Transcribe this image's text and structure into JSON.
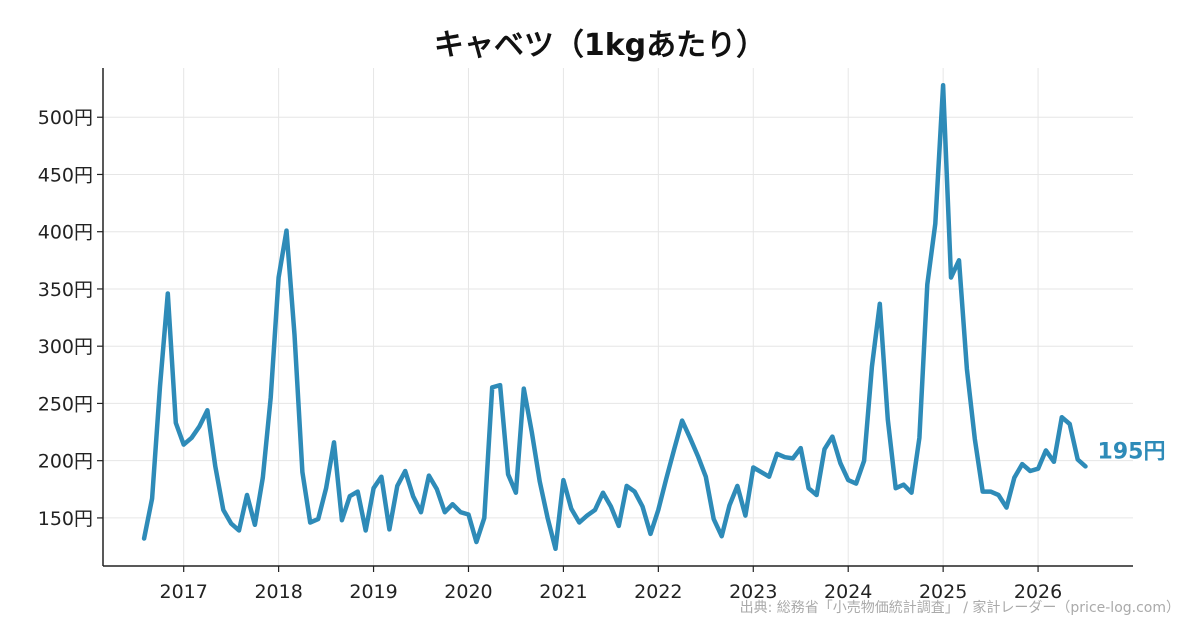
{
  "chart_data": {
    "type": "line",
    "title": "キャベツ（1kgあたり）",
    "xlabel": "",
    "ylabel": "",
    "ylim": [
      108,
      543
    ],
    "xlim": [
      2016.15,
      2027.0
    ],
    "y_ticks": [
      150,
      200,
      250,
      300,
      350,
      400,
      450,
      500
    ],
    "y_tick_labels": [
      "150円",
      "200円",
      "250円",
      "300円",
      "350円",
      "400円",
      "450円",
      "500円"
    ],
    "x_ticks": [
      2017,
      2018,
      2019,
      2020,
      2021,
      2022,
      2023,
      2024,
      2025,
      2026
    ],
    "x_tick_labels": [
      "2017",
      "2018",
      "2019",
      "2020",
      "2021",
      "2022",
      "2023",
      "2024",
      "2025",
      "2026"
    ],
    "grid": true,
    "line_color": "#2e8bb8",
    "series": [
      {
        "name": "",
        "x": [
          2016.583,
          2016.667,
          2016.75,
          2016.833,
          2016.917,
          2017.0,
          2017.083,
          2017.167,
          2017.25,
          2017.333,
          2017.417,
          2017.5,
          2017.583,
          2017.667,
          2017.75,
          2017.833,
          2017.917,
          2018.0,
          2018.083,
          2018.167,
          2018.25,
          2018.333,
          2018.417,
          2018.5,
          2018.583,
          2018.667,
          2018.75,
          2018.833,
          2018.917,
          2019.0,
          2019.083,
          2019.167,
          2019.25,
          2019.333,
          2019.417,
          2019.5,
          2019.583,
          2019.667,
          2019.75,
          2019.833,
          2019.917,
          2020.0,
          2020.083,
          2020.167,
          2020.25,
          2020.333,
          2020.417,
          2020.5,
          2020.583,
          2020.667,
          2020.75,
          2020.833,
          2020.917,
          2021.0,
          2021.083,
          2021.167,
          2021.25,
          2021.333,
          2021.417,
          2021.5,
          2021.583,
          2021.667,
          2021.75,
          2021.833,
          2021.917,
          2022.0,
          2022.083,
          2022.167,
          2022.25,
          2022.333,
          2022.417,
          2022.5,
          2022.583,
          2022.667,
          2022.75,
          2022.833,
          2022.917,
          2023.0,
          2023.083,
          2023.167,
          2023.25,
          2023.333,
          2023.417,
          2023.5,
          2023.583,
          2023.667,
          2023.75,
          2023.833,
          2023.917,
          2024.0,
          2024.083,
          2024.167,
          2024.25,
          2024.333,
          2024.417,
          2024.5,
          2024.583,
          2024.667,
          2024.75,
          2024.833,
          2024.917,
          2025.0,
          2025.083,
          2025.167,
          2025.25,
          2025.333,
          2025.417,
          2025.5,
          2025.583,
          2025.667,
          2025.75,
          2025.833,
          2025.917,
          2026.0,
          2026.083,
          2026.167,
          2026.25,
          2026.333,
          2026.417,
          2026.5
        ],
        "values": [
          132,
          167,
          265,
          346,
          233,
          214,
          220,
          230,
          244,
          195,
          157,
          145,
          139,
          170,
          144,
          185,
          255,
          360,
          401,
          310,
          190,
          146,
          149,
          176,
          216,
          148,
          169,
          173,
          139,
          176,
          186,
          140,
          178,
          191,
          169,
          155,
          187,
          175,
          155,
          162,
          155,
          153,
          129,
          150,
          264,
          266,
          188,
          172,
          263,
          225,
          182,
          150,
          123,
          183,
          158,
          146,
          152,
          157,
          172,
          160,
          143,
          178,
          173,
          160,
          136,
          157,
          184,
          210,
          235,
          220,
          204,
          186,
          149,
          134,
          161,
          178,
          152,
          194,
          190,
          186,
          206,
          203,
          202,
          211,
          176,
          170,
          210,
          221,
          198,
          183,
          180,
          200,
          282,
          337,
          236,
          176,
          179,
          172,
          220,
          354,
          407,
          528,
          360,
          375,
          280,
          219,
          173,
          173,
          170,
          159,
          185,
          197,
          191,
          193,
          209,
          199,
          238,
          232,
          201,
          195
        ]
      }
    ],
    "last_value_label": "195円",
    "source": "出典: 総務省「小売物価統計調査」 / 家計レーダー（price-log.com）"
  }
}
